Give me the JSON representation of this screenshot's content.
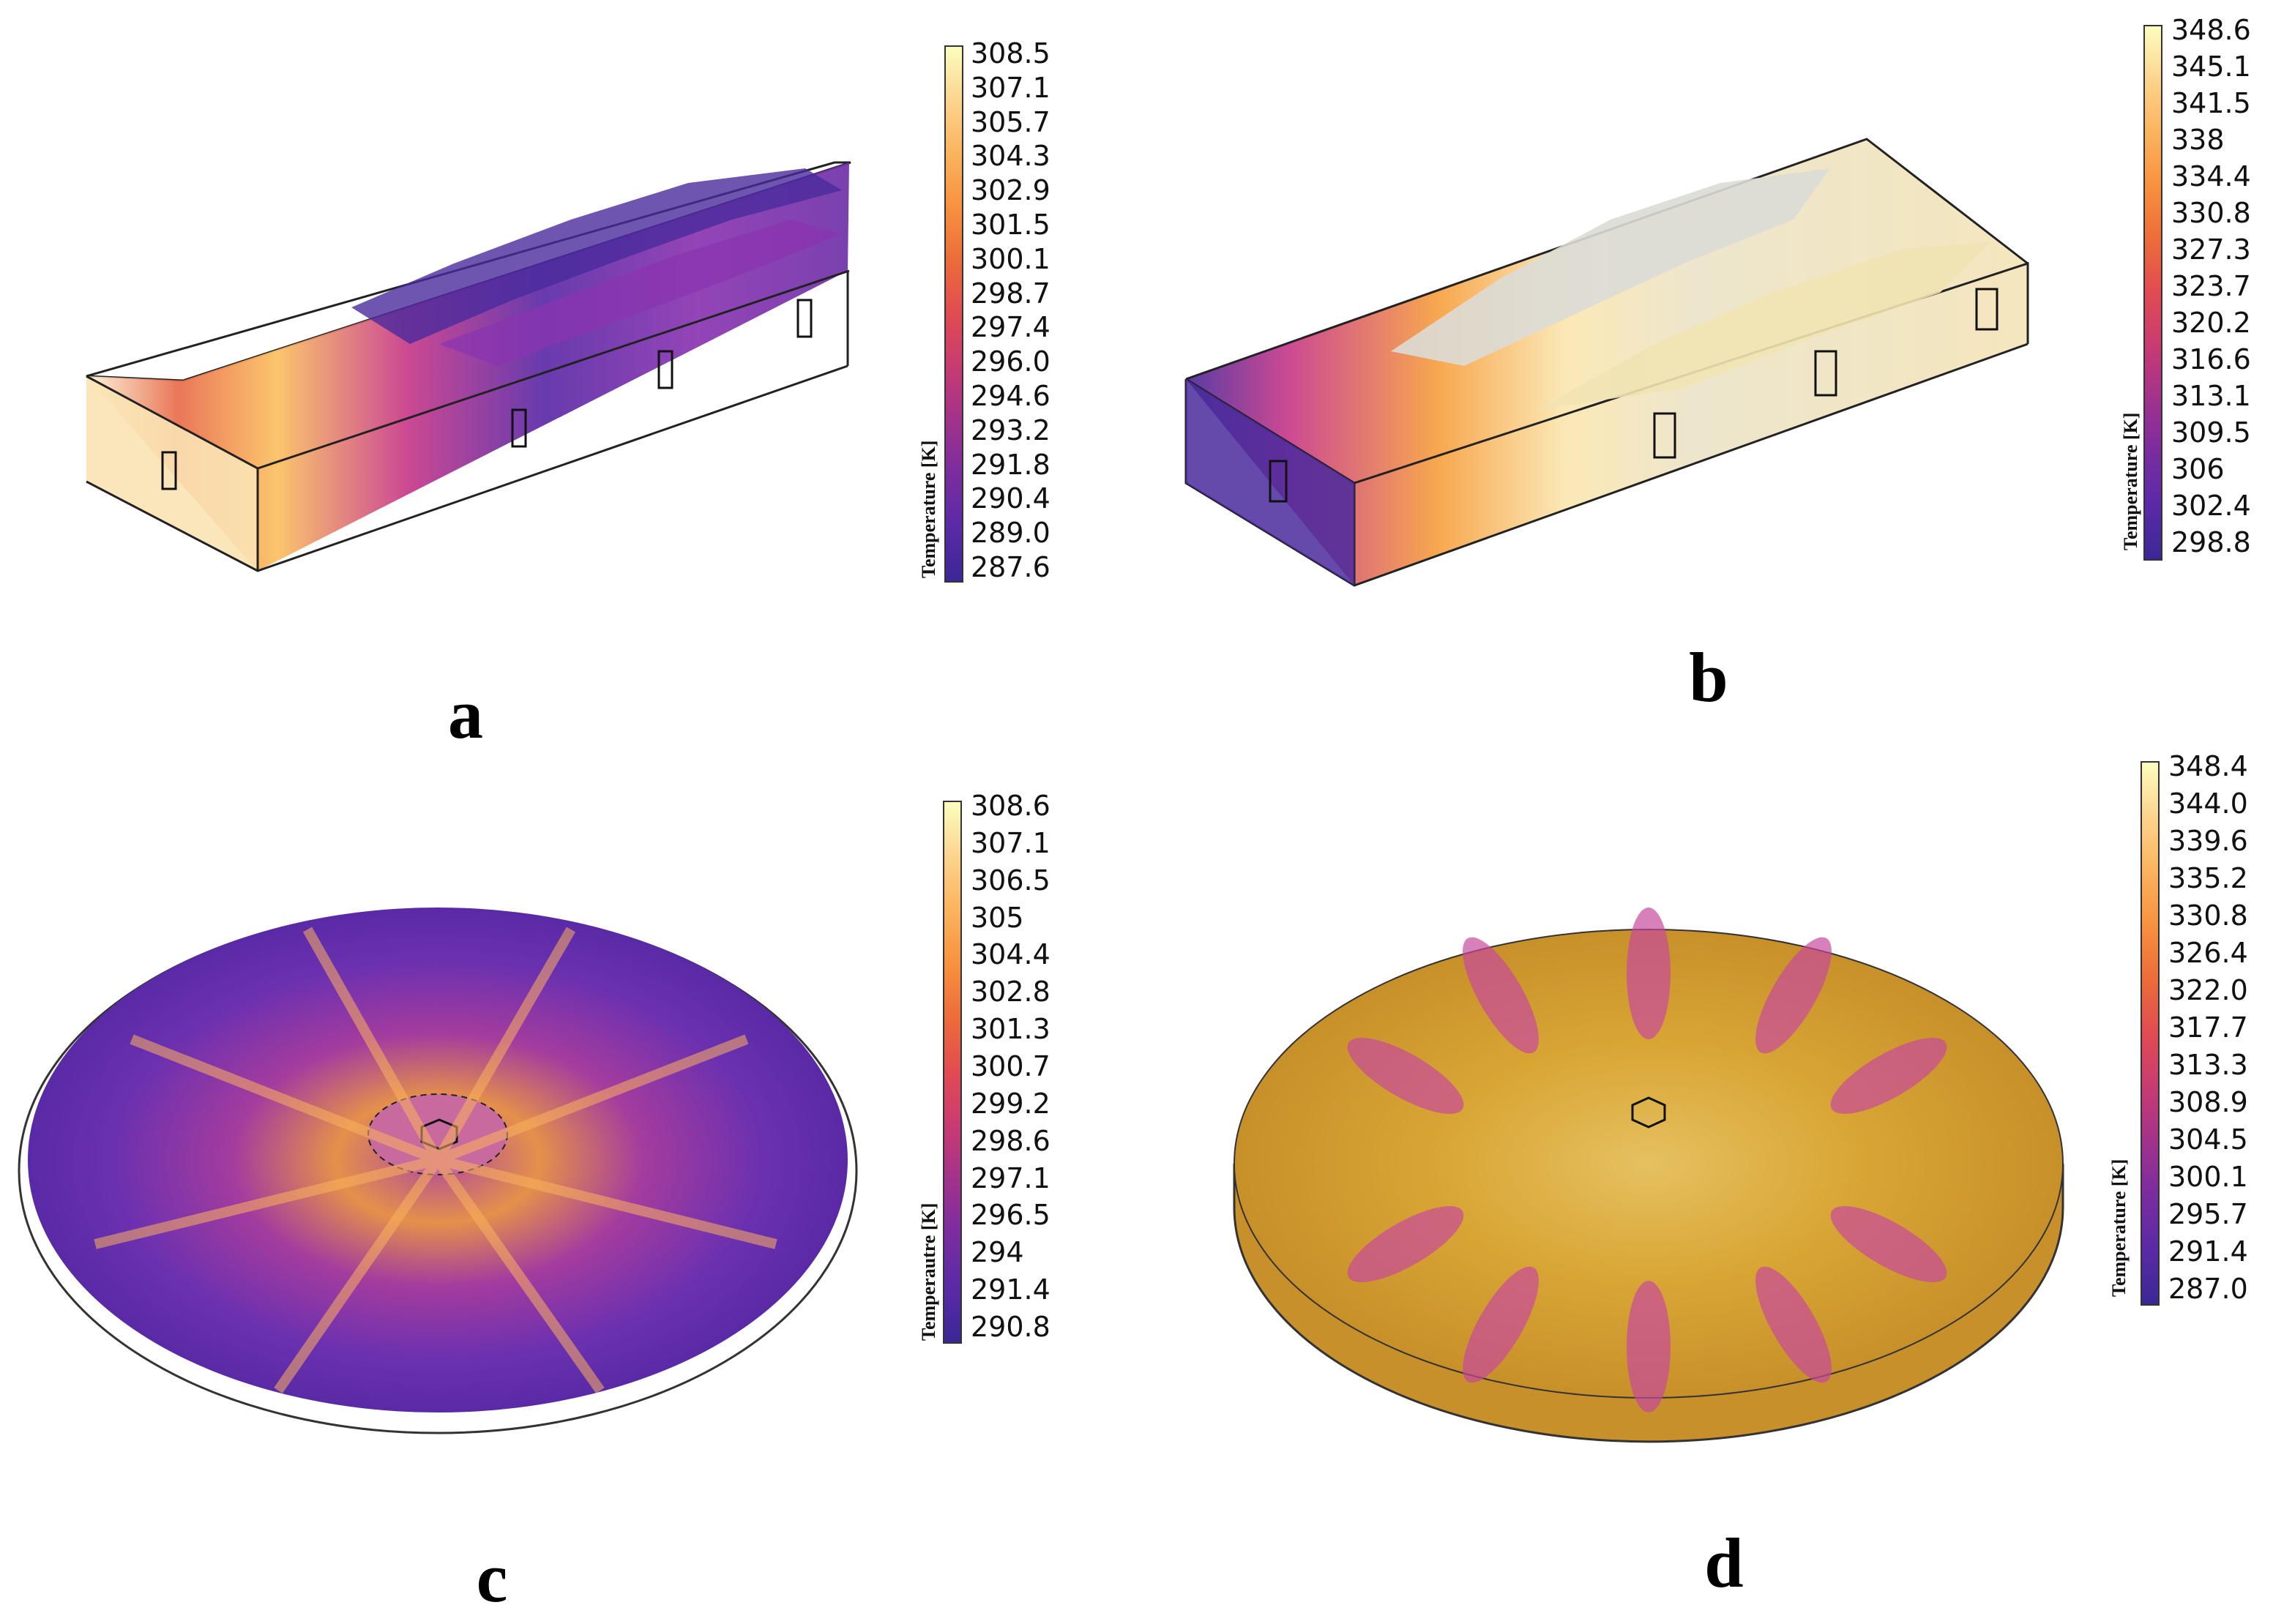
{
  "panels": [
    {
      "letter": "a",
      "colorbar": {
        "title": "Temperature [K]",
        "ticks": [
          "308.5",
          "307.1",
          "305.7",
          "304.3",
          "302.9",
          "301.5",
          "300.1",
          "298.7",
          "297.4",
          "296.0",
          "294.6",
          "293.2",
          "291.8",
          "290.4",
          "289.0",
          "287.6"
        ]
      }
    },
    {
      "letter": "b",
      "colorbar": {
        "title": "Temperature [K]",
        "ticks": [
          "348.6",
          "345.1",
          "341.5",
          "338",
          "334.4",
          "330.8",
          "327.3",
          "323.7",
          "320.2",
          "316.6",
          "313.1",
          "309.5",
          "306",
          "302.4",
          "298.8"
        ]
      }
    },
    {
      "letter": "c",
      "colorbar": {
        "title": "Temperautre [K]",
        "ticks": [
          "308.6",
          "307.1",
          "306.5",
          "305",
          "304.4",
          "302.8",
          "301.3",
          "300.7",
          "299.2",
          "298.6",
          "297.1",
          "296.5",
          "294",
          "291.4",
          "290.8"
        ]
      }
    },
    {
      "letter": "d",
      "colorbar": {
        "title": "Temperature [K]",
        "ticks": [
          "348.4",
          "344.0",
          "339.6",
          "335.2",
          "330.8",
          "326.4",
          "322.0",
          "317.7",
          "313.3",
          "308.9",
          "304.5",
          "300.1",
          "295.7",
          "291.4",
          "287.0"
        ]
      }
    }
  ],
  "colors": {
    "cold": "#3b2794",
    "mid": "#c83b72",
    "warm": "#f7913f",
    "hot": "#fcfdbf",
    "gold": "#d8a635",
    "silver": "#dcdcd6"
  }
}
